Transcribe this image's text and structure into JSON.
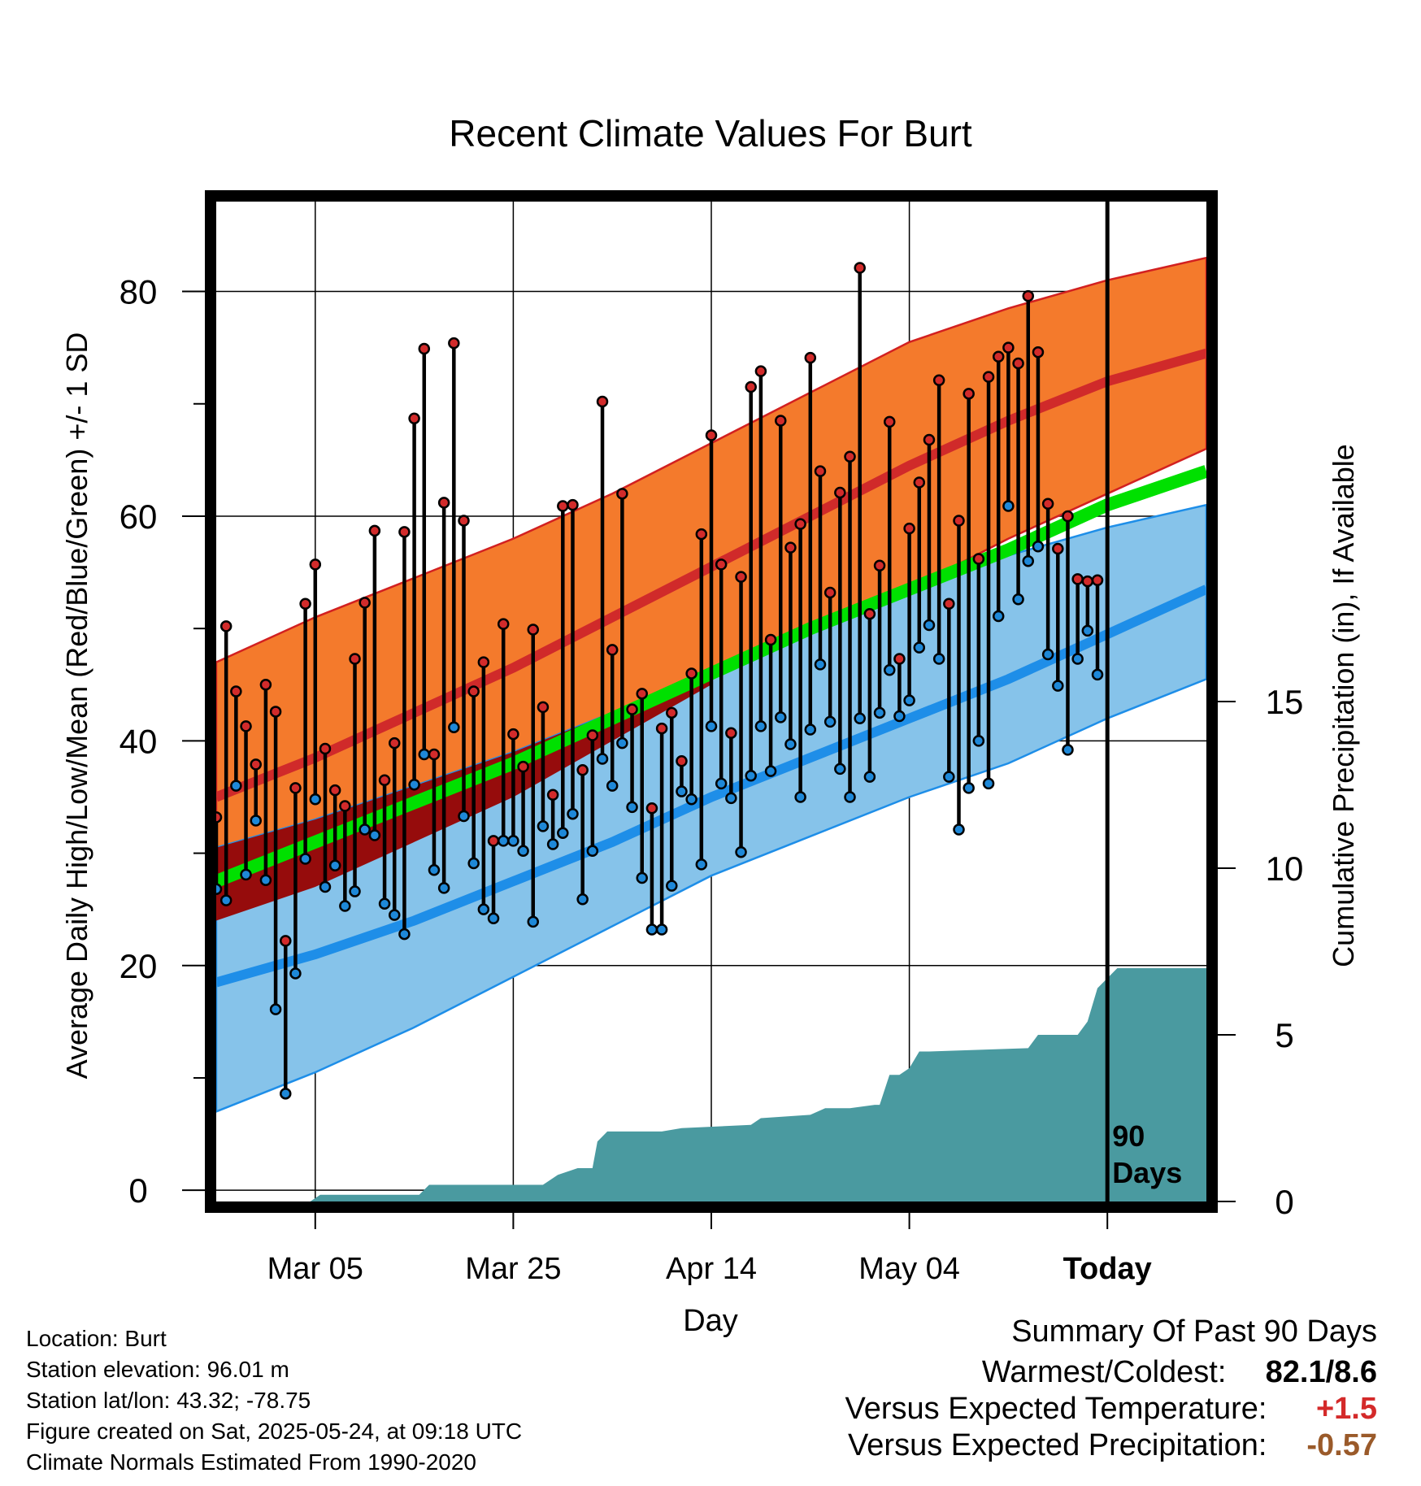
{
  "chart_data": {
    "type": "line",
    "title": "Recent Climate Values For Burt",
    "xlabel": "Day",
    "ylabel": "Average Daily High/Low/Mean (Red/Blue/Green) +/- 1 SD",
    "y2label": "Cumulative Precipitation (in), If Available",
    "xlim": [
      0,
      100
    ],
    "ylim": [
      -1,
      88
    ],
    "y2lim": [
      0,
      30
    ],
    "yticks": [
      0,
      20,
      40,
      60,
      80
    ],
    "y2ticks": [
      0,
      5,
      10,
      15
    ],
    "xticks": [
      {
        "x": 10,
        "label": "Mar 05"
      },
      {
        "x": 30,
        "label": "Mar 25"
      },
      {
        "x": 50,
        "label": "Apr 14"
      },
      {
        "x": 70,
        "label": "May 04"
      },
      {
        "x": 90,
        "label": "Today"
      }
    ],
    "today_marker": {
      "x": 90,
      "label_line1": "90",
      "label_line2": "Days"
    },
    "grid": true,
    "colors": {
      "high_band": "#f47a2c",
      "high_band_edge": "#d22020",
      "high_mean": "#d02a2a",
      "low_band": "#86c3ea",
      "low_band_edge": "#1e8ee8",
      "low_mean": "#1e8ee8",
      "mean_line": "#00e000",
      "overlap": "#960c0c",
      "precip": "#4a9aa0",
      "stem": "#000000",
      "high_marker": "#d22b2b",
      "low_marker": "#1e88d8"
    },
    "normals": {
      "x": [
        0,
        10,
        20,
        30,
        40,
        50,
        60,
        70,
        80,
        90,
        100
      ],
      "high_mean": [
        35,
        38.5,
        42.5,
        46.5,
        51,
        55.5,
        60,
        64.5,
        68.5,
        72,
        74.5
      ],
      "high_upper": [
        47,
        51,
        54.5,
        58,
        62,
        66.5,
        71,
        75.5,
        78.5,
        81,
        83
      ],
      "high_lower": [
        24,
        27,
        31,
        35,
        40,
        45,
        49.5,
        53.5,
        58,
        62,
        66
      ],
      "low_mean": [
        18.5,
        21,
        24,
        27.5,
        31,
        35,
        38.5,
        42,
        45.5,
        49.5,
        53.5
      ],
      "low_upper": [
        30.5,
        33,
        36,
        39,
        42.5,
        46,
        49.5,
        53,
        56.5,
        59,
        61
      ],
      "low_lower": [
        7,
        10.5,
        14.5,
        19,
        23.5,
        28,
        31.5,
        35,
        38,
        42,
        45.5
      ],
      "mean_line": [
        27.5,
        31,
        34.5,
        38,
        42,
        46,
        50,
        53.5,
        57,
        61,
        64
      ]
    },
    "series": [
      {
        "name": "Daily High",
        "x": [
          0,
          1,
          2,
          3,
          4,
          5,
          6,
          7,
          8,
          9,
          10,
          11,
          12,
          13,
          14,
          15,
          16,
          17,
          18,
          19,
          20,
          21,
          22,
          23,
          24,
          25,
          26,
          27,
          28,
          29,
          30,
          31,
          32,
          33,
          34,
          35,
          36,
          37,
          38,
          39,
          40,
          41,
          42,
          43,
          44,
          45,
          46,
          47,
          48,
          49,
          50,
          51,
          52,
          53,
          54,
          55,
          56,
          57,
          58,
          59,
          60,
          61,
          62,
          63,
          64,
          65,
          66,
          67,
          68,
          69,
          70,
          71,
          72,
          73,
          74,
          75,
          76,
          77,
          78,
          79,
          80,
          81,
          82,
          83,
          84,
          85,
          86,
          87,
          88,
          89
        ],
        "values": [
          33.2,
          50.2,
          44.4,
          41.3,
          37.9,
          45.0,
          42.6,
          22.2,
          35.8,
          52.2,
          55.7,
          39.3,
          35.6,
          34.2,
          47.3,
          52.3,
          58.7,
          36.5,
          39.8,
          58.6,
          68.7,
          74.9,
          38.8,
          61.2,
          75.4,
          59.6,
          44.4,
          47.0,
          31.1,
          50.4,
          40.6,
          37.7,
          49.9,
          43.0,
          35.2,
          60.9,
          61.0,
          37.4,
          40.5,
          70.2,
          48.1,
          62.0,
          42.8,
          44.2,
          34.0,
          41.1,
          42.5,
          38.2,
          46.0,
          58.4,
          67.2,
          55.7,
          40.7,
          54.6,
          71.5,
          72.9,
          49.0,
          68.5,
          57.2,
          59.3,
          74.1,
          64.0,
          53.2,
          62.1,
          65.3,
          82.1,
          51.3,
          55.6,
          68.4,
          47.3,
          58.9,
          63.0,
          66.8,
          72.1,
          52.2,
          59.6,
          70.9,
          56.2,
          72.4,
          74.2,
          75.0,
          73.6,
          79.6,
          74.6,
          61.1,
          57.1,
          60.0,
          54.4,
          54.2,
          54.3
        ]
      },
      {
        "name": "Daily Low",
        "x": [
          0,
          1,
          2,
          3,
          4,
          5,
          6,
          7,
          8,
          9,
          10,
          11,
          12,
          13,
          14,
          15,
          16,
          17,
          18,
          19,
          20,
          21,
          22,
          23,
          24,
          25,
          26,
          27,
          28,
          29,
          30,
          31,
          32,
          33,
          34,
          35,
          36,
          37,
          38,
          39,
          40,
          41,
          42,
          43,
          44,
          45,
          46,
          47,
          48,
          49,
          50,
          51,
          52,
          53,
          54,
          55,
          56,
          57,
          58,
          59,
          60,
          61,
          62,
          63,
          64,
          65,
          66,
          67,
          68,
          69,
          70,
          71,
          72,
          73,
          74,
          75,
          76,
          77,
          78,
          79,
          80,
          81,
          82,
          83,
          84,
          85,
          86,
          87,
          88,
          89
        ],
        "values": [
          26.8,
          25.8,
          36.0,
          28.1,
          32.9,
          27.6,
          16.1,
          8.6,
          19.3,
          29.5,
          34.8,
          27.0,
          28.9,
          25.3,
          26.6,
          32.1,
          31.6,
          25.5,
          24.5,
          22.8,
          36.1,
          38.8,
          28.5,
          26.9,
          41.2,
          33.3,
          29.1,
          25.0,
          24.2,
          31.1,
          31.1,
          30.2,
          23.9,
          32.4,
          30.8,
          31.8,
          33.5,
          25.9,
          30.2,
          38.4,
          36.0,
          39.8,
          34.1,
          27.8,
          23.2,
          23.2,
          27.1,
          35.5,
          34.8,
          29.0,
          41.3,
          36.2,
          34.9,
          30.1,
          36.9,
          41.3,
          37.3,
          42.1,
          39.7,
          35.0,
          41.0,
          46.8,
          41.7,
          37.5,
          35.0,
          42.0,
          36.8,
          42.5,
          46.3,
          42.2,
          43.6,
          48.3,
          50.3,
          47.3,
          36.8,
          32.1,
          35.8,
          40.0,
          36.2,
          51.1,
          60.9,
          52.6,
          56.0,
          57.3,
          47.7,
          44.9,
          39.2,
          47.3,
          49.8,
          45.9
        ]
      }
    ],
    "precip_cumulative": {
      "x": [
        0,
        9.5,
        10.5,
        20.5,
        21.5,
        33,
        34.5,
        36.5,
        38,
        38.5,
        39.5,
        45,
        47,
        54,
        55,
        60,
        61.5,
        64,
        66.5,
        67,
        68,
        69,
        70,
        71,
        72,
        82,
        83,
        87,
        88,
        89,
        91,
        100
      ],
      "values": [
        0,
        0,
        0.2,
        0.2,
        0.5,
        0.5,
        0.8,
        1.0,
        1.0,
        1.8,
        2.1,
        2.1,
        2.2,
        2.3,
        2.5,
        2.6,
        2.8,
        2.8,
        2.9,
        2.9,
        3.8,
        3.8,
        4.0,
        4.5,
        4.5,
        4.6,
        5.0,
        5.0,
        5.4,
        6.4,
        7.0,
        7.0
      ]
    }
  },
  "info": {
    "location": "Location: Burt",
    "elevation": "Station elevation: 96.01 m",
    "latlon": "Station lat/lon: 43.32; -78.75",
    "created": "Figure created on Sat, 2025-05-24, at 09:18 UTC",
    "normals": "Climate Normals Estimated From 1990-2020"
  },
  "summary": {
    "title": "Summary Of Past 90 Days",
    "warm_cold_label": "Warmest/Coldest:",
    "warm_cold_value": "82.1/8.6",
    "temp_label": "Versus Expected Temperature:",
    "temp_value": "+1.5",
    "temp_color": "#d42a2a",
    "precip_label": "Versus Expected Precipitation:",
    "precip_value": "-0.57",
    "precip_color": "#9a5a2a"
  }
}
